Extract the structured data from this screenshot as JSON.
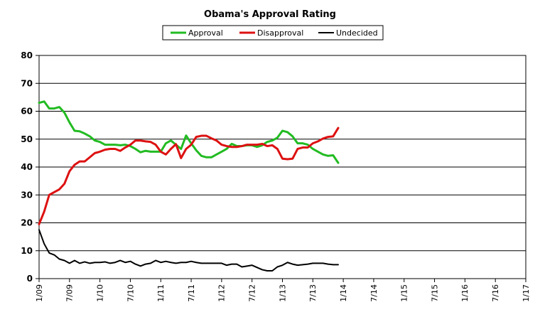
{
  "chart_data": {
    "type": "line",
    "title": "Obama's Approval Rating",
    "xlabel": "",
    "ylabel": "",
    "ylim": [
      0,
      80
    ],
    "yticks": [
      "0",
      "10",
      "20",
      "30",
      "40",
      "50",
      "60",
      "70",
      "80"
    ],
    "xlim": [
      "2009-01",
      "2017-01"
    ],
    "xticks": [
      "1/09",
      "7/09",
      "1/10",
      "7/10",
      "1/11",
      "7/11",
      "1/12",
      "7/12",
      "1/13",
      "7/13",
      "1/14",
      "7/14",
      "1/15",
      "7/15",
      "1/16",
      "7/16",
      "1/17"
    ],
    "grid": "horizontal",
    "legend_position": "top-center",
    "series": [
      {
        "name": "Approval",
        "color": "#22bb22",
        "points": [
          [
            "2009-01",
            63
          ],
          [
            "2009-02",
            63.5
          ],
          [
            "2009-03",
            61
          ],
          [
            "2009-04",
            61
          ],
          [
            "2009-05",
            61.5
          ],
          [
            "2009-06",
            59.5
          ],
          [
            "2009-07",
            56
          ],
          [
            "2009-08",
            53
          ],
          [
            "2009-09",
            52.8
          ],
          [
            "2009-10",
            52
          ],
          [
            "2009-11",
            51
          ],
          [
            "2009-12",
            49.5
          ],
          [
            "2010-01",
            49
          ],
          [
            "2010-02",
            48
          ],
          [
            "2010-03",
            48
          ],
          [
            "2010-04",
            48
          ],
          [
            "2010-05",
            47.8
          ],
          [
            "2010-06",
            48
          ],
          [
            "2010-07",
            47.5
          ],
          [
            "2010-08",
            46.5
          ],
          [
            "2010-09",
            45.3
          ],
          [
            "2010-10",
            45.8
          ],
          [
            "2010-11",
            45.5
          ],
          [
            "2010-12",
            45.5
          ],
          [
            "2011-01",
            45.5
          ],
          [
            "2011-02",
            48.5
          ],
          [
            "2011-03",
            49.5
          ],
          [
            "2011-04",
            48
          ],
          [
            "2011-05",
            46.5
          ],
          [
            "2011-06",
            51.3
          ],
          [
            "2011-07",
            48.5
          ],
          [
            "2011-08",
            46
          ],
          [
            "2011-09",
            44
          ],
          [
            "2011-10",
            43.5
          ],
          [
            "2011-11",
            43.5
          ],
          [
            "2011-12",
            44.5
          ],
          [
            "2012-01",
            45.5
          ],
          [
            "2012-02",
            46.5
          ],
          [
            "2012-03",
            48.3
          ],
          [
            "2012-04",
            47.5
          ],
          [
            "2012-05",
            47.5
          ],
          [
            "2012-06",
            47.8
          ],
          [
            "2012-07",
            47.8
          ],
          [
            "2012-08",
            47.2
          ],
          [
            "2012-09",
            47.8
          ],
          [
            "2012-10",
            49
          ],
          [
            "2012-11",
            49.5
          ],
          [
            "2012-12",
            50.5
          ],
          [
            "2013-01",
            53
          ],
          [
            "2013-02",
            52.5
          ],
          [
            "2013-03",
            51
          ],
          [
            "2013-04",
            48.5
          ],
          [
            "2013-05",
            48.5
          ],
          [
            "2013-06",
            48
          ],
          [
            "2013-07",
            46.5
          ],
          [
            "2013-08",
            45.5
          ],
          [
            "2013-09",
            44.5
          ],
          [
            "2013-10",
            44
          ],
          [
            "2013-11",
            44.2
          ],
          [
            "2013-12",
            41.5
          ]
        ]
      },
      {
        "name": "Disapproval",
        "color": "#dd1111",
        "points": [
          [
            "2009-01",
            19.5
          ],
          [
            "2009-02",
            24
          ],
          [
            "2009-03",
            30
          ],
          [
            "2009-04",
            31
          ],
          [
            "2009-05",
            32
          ],
          [
            "2009-06",
            34
          ],
          [
            "2009-07",
            38.5
          ],
          [
            "2009-08",
            40.8
          ],
          [
            "2009-09",
            42
          ],
          [
            "2009-10",
            42
          ],
          [
            "2009-11",
            43.5
          ],
          [
            "2009-12",
            45
          ],
          [
            "2010-01",
            45.5
          ],
          [
            "2010-02",
            46.2
          ],
          [
            "2010-03",
            46.5
          ],
          [
            "2010-04",
            46.5
          ],
          [
            "2010-05",
            45.8
          ],
          [
            "2010-06",
            47
          ],
          [
            "2010-07",
            48
          ],
          [
            "2010-08",
            49.5
          ],
          [
            "2010-09",
            49.5
          ],
          [
            "2010-10",
            49.2
          ],
          [
            "2010-11",
            49
          ],
          [
            "2010-12",
            48
          ],
          [
            "2011-01",
            45.5
          ],
          [
            "2011-02",
            44.5
          ],
          [
            "2011-03",
            46.5
          ],
          [
            "2011-04",
            48.2
          ],
          [
            "2011-05",
            43.2
          ],
          [
            "2011-06",
            46.5
          ],
          [
            "2011-07",
            48
          ],
          [
            "2011-08",
            50.8
          ],
          [
            "2011-09",
            51.2
          ],
          [
            "2011-10",
            51.2
          ],
          [
            "2011-11",
            50.3
          ],
          [
            "2011-12",
            49.5
          ],
          [
            "2012-01",
            48
          ],
          [
            "2012-02",
            47.5
          ],
          [
            "2012-03",
            47.2
          ],
          [
            "2012-04",
            47.2
          ],
          [
            "2012-05",
            47.5
          ],
          [
            "2012-06",
            48
          ],
          [
            "2012-07",
            48
          ],
          [
            "2012-08",
            48
          ],
          [
            "2012-09",
            48.3
          ],
          [
            "2012-10",
            47.5
          ],
          [
            "2012-11",
            47.8
          ],
          [
            "2012-12",
            46.5
          ],
          [
            "2013-01",
            43
          ],
          [
            "2013-02",
            42.8
          ],
          [
            "2013-03",
            43
          ],
          [
            "2013-04",
            46.5
          ],
          [
            "2013-05",
            47
          ],
          [
            "2013-06",
            47
          ],
          [
            "2013-07",
            48.5
          ],
          [
            "2013-08",
            49.2
          ],
          [
            "2013-09",
            50.2
          ],
          [
            "2013-10",
            50.8
          ],
          [
            "2013-11",
            51
          ],
          [
            "2013-12",
            54
          ]
        ]
      },
      {
        "name": "Undecided",
        "color": "#000000",
        "points": [
          [
            "2009-01",
            17.5
          ],
          [
            "2009-02",
            12.5
          ],
          [
            "2009-03",
            9.2
          ],
          [
            "2009-04",
            8.5
          ],
          [
            "2009-05",
            7
          ],
          [
            "2009-06",
            6.5
          ],
          [
            "2009-07",
            5.5
          ],
          [
            "2009-08",
            6.5
          ],
          [
            "2009-09",
            5.5
          ],
          [
            "2009-10",
            6
          ],
          [
            "2009-11",
            5.5
          ],
          [
            "2009-12",
            5.8
          ],
          [
            "2010-01",
            5.8
          ],
          [
            "2010-02",
            6
          ],
          [
            "2010-03",
            5.5
          ],
          [
            "2010-04",
            5.8
          ],
          [
            "2010-05",
            6.5
          ],
          [
            "2010-06",
            5.8
          ],
          [
            "2010-07",
            6.2
          ],
          [
            "2010-08",
            5.2
          ],
          [
            "2010-09",
            4.5
          ],
          [
            "2010-10",
            5.2
          ],
          [
            "2010-11",
            5.5
          ],
          [
            "2010-12",
            6.5
          ],
          [
            "2011-01",
            5.8
          ],
          [
            "2011-02",
            6.2
          ],
          [
            "2011-03",
            5.8
          ],
          [
            "2011-04",
            5.5
          ],
          [
            "2011-05",
            5.8
          ],
          [
            "2011-06",
            5.8
          ],
          [
            "2011-07",
            6.2
          ],
          [
            "2011-08",
            5.8
          ],
          [
            "2011-09",
            5.5
          ],
          [
            "2011-10",
            5.5
          ],
          [
            "2011-11",
            5.5
          ],
          [
            "2011-12",
            5.5
          ],
          [
            "2012-01",
            5.5
          ],
          [
            "2012-02",
            4.8
          ],
          [
            "2012-03",
            5.2
          ],
          [
            "2012-04",
            5.2
          ],
          [
            "2012-05",
            4.2
          ],
          [
            "2012-06",
            4.5
          ],
          [
            "2012-07",
            4.8
          ],
          [
            "2012-08",
            4
          ],
          [
            "2012-09",
            3.2
          ],
          [
            "2012-10",
            2.8
          ],
          [
            "2012-11",
            2.8
          ],
          [
            "2012-12",
            4.2
          ],
          [
            "2013-01",
            4.8
          ],
          [
            "2013-02",
            5.8
          ],
          [
            "2013-03",
            5.2
          ],
          [
            "2013-04",
            4.8
          ],
          [
            "2013-05",
            5
          ],
          [
            "2013-06",
            5.2
          ],
          [
            "2013-07",
            5.5
          ],
          [
            "2013-08",
            5.5
          ],
          [
            "2013-09",
            5.5
          ],
          [
            "2013-10",
            5.2
          ],
          [
            "2013-11",
            5
          ],
          [
            "2013-12",
            5
          ]
        ]
      }
    ]
  }
}
